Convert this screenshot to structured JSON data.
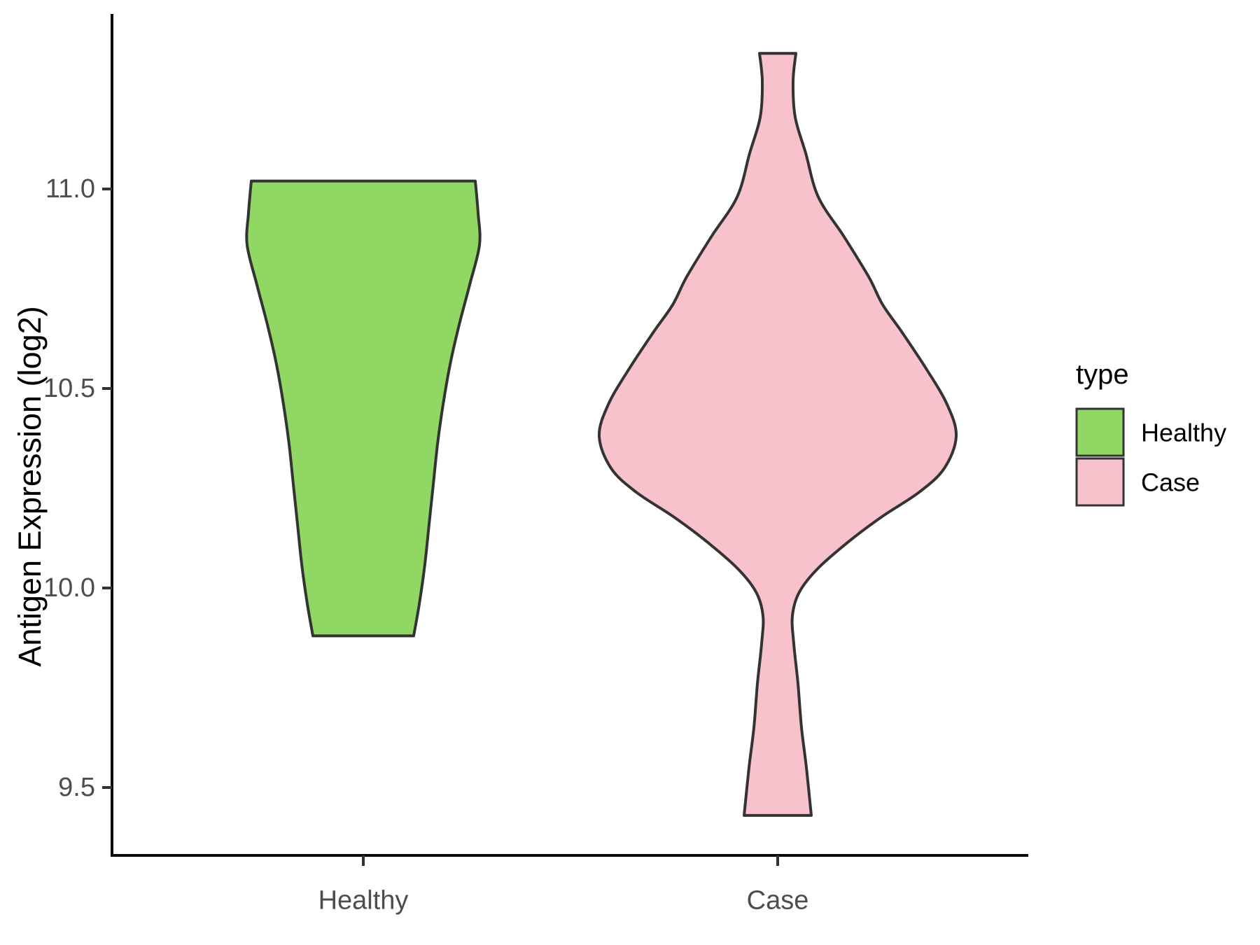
{
  "chart_data": {
    "type": "violin",
    "title": "",
    "xlabel": "",
    "ylabel": "Antigen Expression (log2)",
    "categories": [
      "Healthy",
      "Case"
    ],
    "y_axis": {
      "ticks": [
        11.0,
        10.5,
        10.0,
        9.5
      ],
      "tick_labels": [
        "11.0",
        "10.5",
        "10.0",
        "9.5"
      ],
      "range_shown": [
        9.33,
        11.44
      ],
      "grid": "off"
    },
    "legend": {
      "title": "type",
      "position": "right",
      "entries": [
        {
          "label": "Healthy",
          "color": "#90D763"
        },
        {
          "label": "Case",
          "color": "#F8C2CC"
        }
      ]
    },
    "series": [
      {
        "name": "Healthy",
        "fill": "#90D763",
        "outline": "#333333",
        "value_range": [
          9.88,
          11.02
        ],
        "widest_at": 10.86,
        "flat_top": true,
        "flat_bottom": true,
        "profile_value_halfwidth": [
          [
            11.02,
            160
          ],
          [
            10.94,
            164
          ],
          [
            10.86,
            166
          ],
          [
            10.76,
            152
          ],
          [
            10.66,
            137
          ],
          [
            10.56,
            124
          ],
          [
            10.46,
            114
          ],
          [
            10.36,
            106
          ],
          [
            10.26,
            100
          ],
          [
            10.16,
            94
          ],
          [
            10.06,
            88
          ],
          [
            9.96,
            80
          ],
          [
            9.88,
            72
          ]
        ]
      },
      {
        "name": "Case",
        "fill": "#F8C2CC",
        "outline": "#333333",
        "value_range": [
          9.43,
          11.34
        ],
        "widest_at": 10.38,
        "flat_top": true,
        "flat_bottom": true,
        "profile_value_halfwidth": [
          [
            11.34,
            26
          ],
          [
            11.27,
            22
          ],
          [
            11.18,
            25
          ],
          [
            11.09,
            40
          ],
          [
            10.98,
            58
          ],
          [
            10.88,
            95
          ],
          [
            10.78,
            130
          ],
          [
            10.71,
            150
          ],
          [
            10.64,
            178
          ],
          [
            10.55,
            212
          ],
          [
            10.46,
            242
          ],
          [
            10.38,
            255
          ],
          [
            10.3,
            238
          ],
          [
            10.24,
            202
          ],
          [
            10.18,
            150
          ],
          [
            10.12,
            104
          ],
          [
            10.05,
            58
          ],
          [
            9.99,
            31
          ],
          [
            9.93,
            21
          ],
          [
            9.86,
            23
          ],
          [
            9.76,
            29
          ],
          [
            9.65,
            34
          ],
          [
            9.55,
            41
          ],
          [
            9.43,
            48
          ]
        ]
      }
    ]
  }
}
